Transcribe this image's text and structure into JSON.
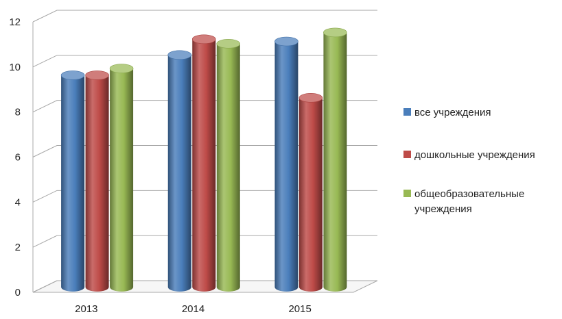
{
  "chart_data": {
    "type": "bar",
    "style": "3d-cylinder",
    "title": "",
    "xlabel": "",
    "ylabel": "",
    "categories": [
      "2013",
      "2014",
      "2015"
    ],
    "ylim": [
      0,
      12
    ],
    "yticks": [
      0,
      2,
      4,
      6,
      8,
      10,
      12
    ],
    "grid": true,
    "legend_position": "right",
    "series": [
      {
        "name": "все учреждения",
        "color": "#4a7ebb",
        "values": [
          9.4,
          10.3,
          10.9
        ]
      },
      {
        "name": "дошкольные учреждения",
        "color": "#be4b48",
        "values": [
          9.4,
          11.0,
          8.4
        ]
      },
      {
        "name": "общеобразовательные учреждения",
        "color": "#98b954",
        "values": [
          9.7,
          10.8,
          11.3
        ]
      }
    ]
  }
}
